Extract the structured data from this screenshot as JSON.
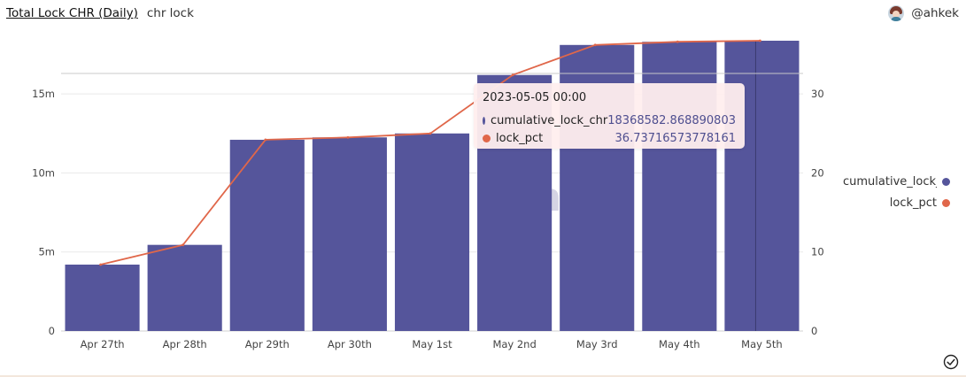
{
  "header": {
    "title": "Total Lock CHR (Daily)",
    "subtitle": "chr lock",
    "user": "@ahkek"
  },
  "colors": {
    "bar": "#55559b",
    "line": "#e0674a",
    "grid": "#e9e9e9",
    "tooltip_bg": "#ffeeee"
  },
  "icons": {
    "avatar": "avatar-icon",
    "check": "check-circle-icon",
    "watermark": "dune-logo"
  },
  "watermark": "Dune",
  "chart_data": {
    "type": "bar",
    "categories": [
      "Apr 27th",
      "Apr 28th",
      "Apr 29th",
      "Apr 30th",
      "May 1st",
      "May 2nd",
      "May 3rd",
      "May 4th",
      "May 5th"
    ],
    "series": [
      {
        "name": "cumulative_lock_chr",
        "type": "bar",
        "axis": "left",
        "values": [
          4200000,
          5450000,
          12100000,
          12250000,
          12500000,
          16200000,
          18100000,
          18300000,
          18368582.868890803
        ]
      },
      {
        "name": "lock_pct",
        "type": "line",
        "axis": "right",
        "values": [
          8.4,
          10.9,
          24.2,
          24.5,
          25.0,
          32.4,
          36.2,
          36.6,
          36.73716573778161
        ]
      }
    ],
    "ylim_left": [
      0,
      18368582.868890803
    ],
    "ylim_right": [
      0,
      36.73716573778161
    ],
    "yticks_left": [
      {
        "value": 0,
        "label": "0"
      },
      {
        "value": 5000000,
        "label": "5m"
      },
      {
        "value": 10000000,
        "label": "10m"
      },
      {
        "value": 15000000,
        "label": "15m"
      }
    ],
    "yticks_right": [
      {
        "value": 0,
        "label": "0"
      },
      {
        "value": 10,
        "label": "10"
      },
      {
        "value": 20,
        "label": "20"
      },
      {
        "value": 30,
        "label": "30"
      }
    ],
    "grid": true,
    "legend": "right",
    "legend_entries": [
      "cumulative_lock_chr",
      "lock_pct"
    ],
    "highlight_index": 8
  },
  "tooltip": {
    "title": "2023-05-05 00:00",
    "rows": [
      {
        "name": "cumulative_lock_chr",
        "value": "18368582.868890803"
      },
      {
        "name": "lock_pct",
        "value": "36.73716573778161"
      }
    ]
  }
}
